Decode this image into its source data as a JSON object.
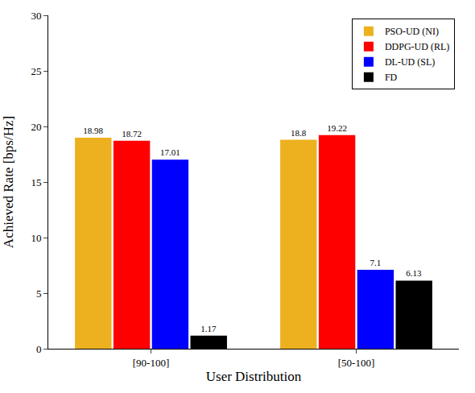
{
  "chart_data": {
    "type": "bar",
    "x_label": "User Distribution",
    "y_label": "Achieved Rate [bps/Hz]",
    "categories": [
      "[90-100]",
      "[50-100]"
    ],
    "series": [
      {
        "name": "PSO-UD (NI)",
        "color": "#EDB120",
        "values": [
          18.98,
          18.8
        ]
      },
      {
        "name": "DDPG-UD (RL)",
        "color": "#FF0000",
        "values": [
          18.72,
          19.22
        ]
      },
      {
        "name": "DL-UD (SL)",
        "color": "#0000FF",
        "values": [
          17.01,
          7.1
        ]
      },
      {
        "name": "FD",
        "color": "#000000",
        "values": [
          1.17,
          6.13
        ]
      }
    ],
    "ylim": [
      0,
      30
    ],
    "yticks": [
      0,
      5,
      10,
      15,
      20,
      25,
      30
    ],
    "grid": false,
    "legend": "upper right",
    "data_labels": true
  }
}
